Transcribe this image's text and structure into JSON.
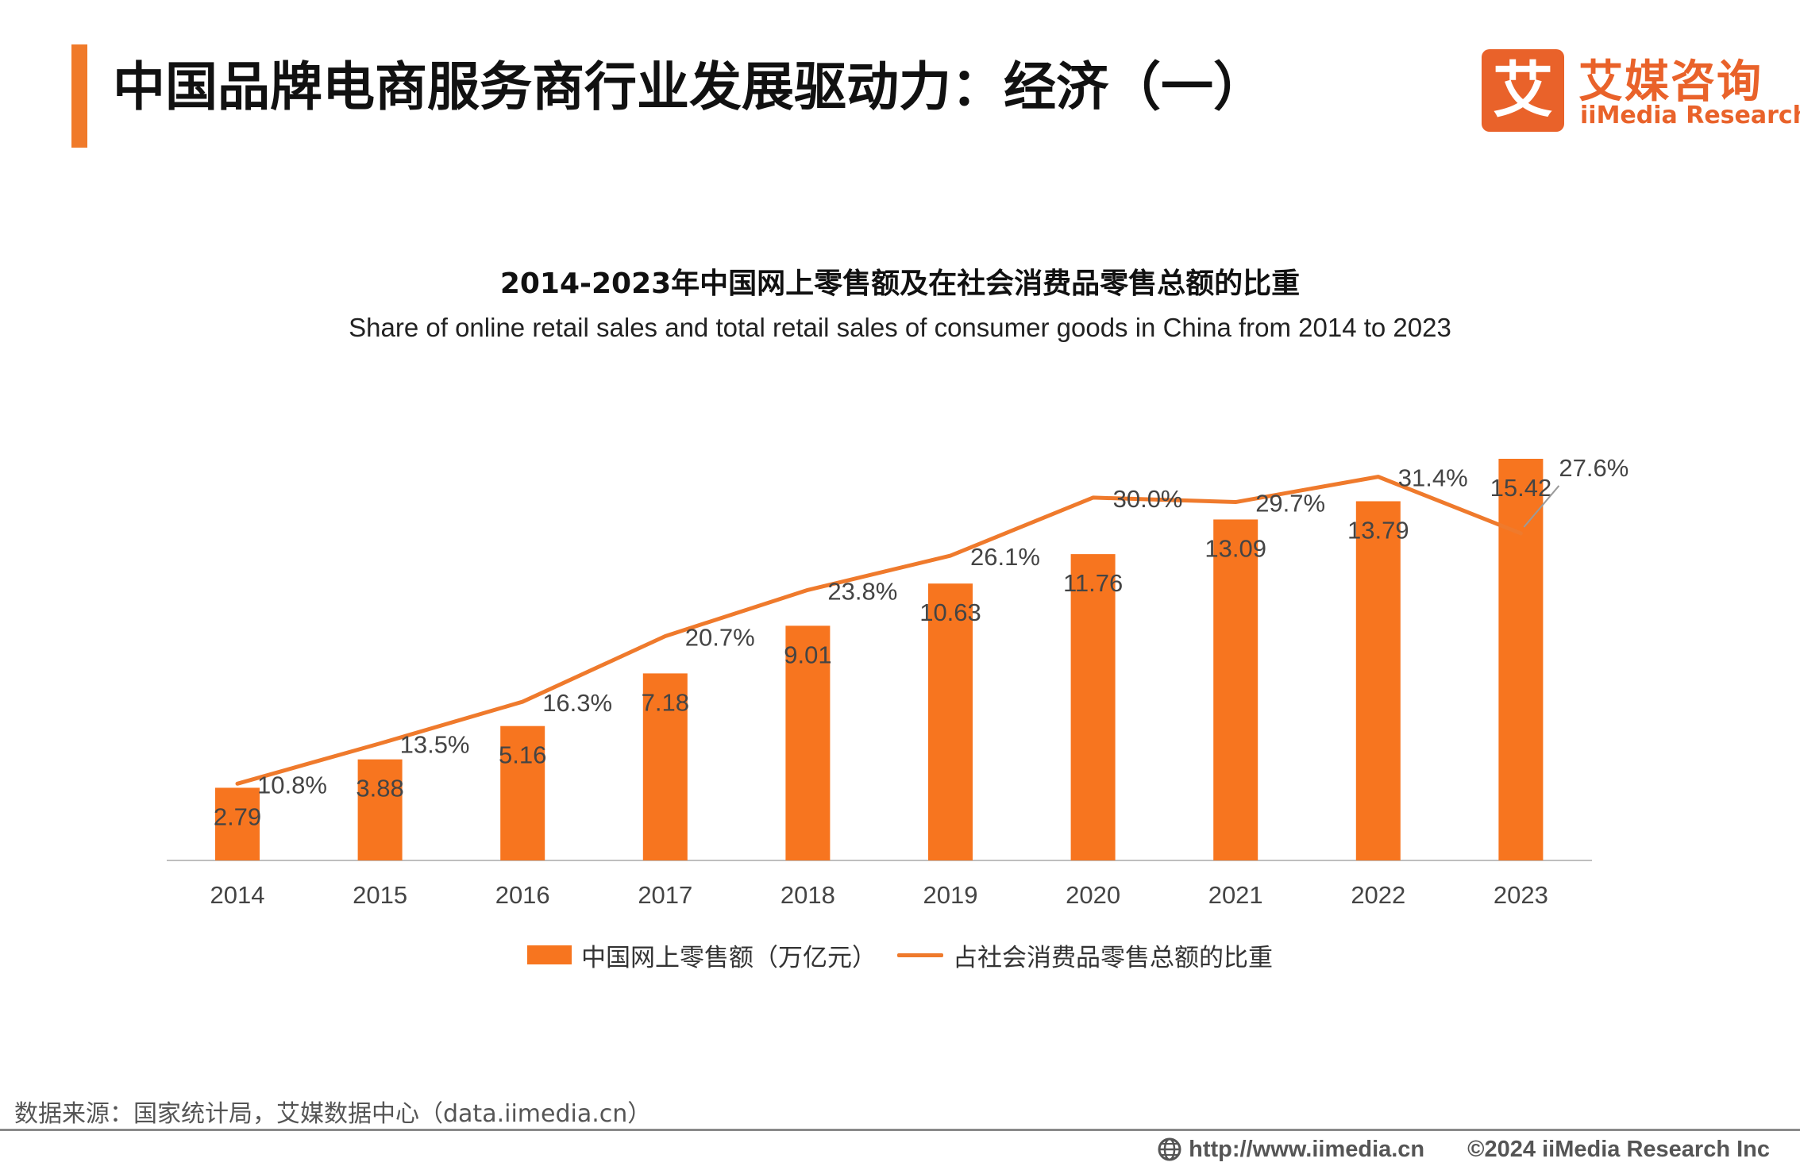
{
  "header": {
    "title": "中国品牌电商服务商行业发展驱动力：经济（一）"
  },
  "logo": {
    "mark_glyph": "艾",
    "name_cn": "艾媒咨询",
    "name_en": "iiMedia Research"
  },
  "colors": {
    "accent": "#f07a2a",
    "bar": "#f7751f",
    "line": "#ef7a2c",
    "brand": "#e9622a"
  },
  "chart_data": {
    "type": "bar",
    "title": "2014-2023年中国网上零售额及在社会消费品零售总额的比重",
    "subtitle": "Share of online retail sales and total retail sales of consumer goods in China  from 2014 to 2023",
    "categories": [
      "2014",
      "2015",
      "2016",
      "2017",
      "2018",
      "2019",
      "2020",
      "2021",
      "2022",
      "2023"
    ],
    "series": [
      {
        "name": "中国网上零售额（万亿元）",
        "type": "bar",
        "axis": "left",
        "values": [
          2.79,
          3.88,
          5.16,
          7.18,
          9.01,
          10.63,
          11.76,
          13.09,
          13.79,
          15.42
        ],
        "labels": [
          "2.79",
          "3.88",
          "5.16",
          "7.18",
          "9.01",
          "10.63",
          "11.76",
          "13.09",
          "13.79",
          "15.42"
        ]
      },
      {
        "name": "占社会消费品零售总额的比重",
        "type": "line",
        "axis": "right",
        "values": [
          10.8,
          13.5,
          16.3,
          20.7,
          23.8,
          26.1,
          30.0,
          29.7,
          31.4,
          27.6
        ],
        "labels": [
          "10.8%",
          "13.5%",
          "16.3%",
          "20.7%",
          "23.8%",
          "26.1%",
          "30.0%",
          "29.7%",
          "31.4%",
          "27.6%"
        ]
      }
    ],
    "legend_position": "bottom"
  },
  "footer": {
    "source": "数据来源：国家统计局，艾媒数据中心（data.iimedia.cn）",
    "url": "http://www.iimedia.cn",
    "copyright": "©2024  iiMedia Research  Inc"
  }
}
